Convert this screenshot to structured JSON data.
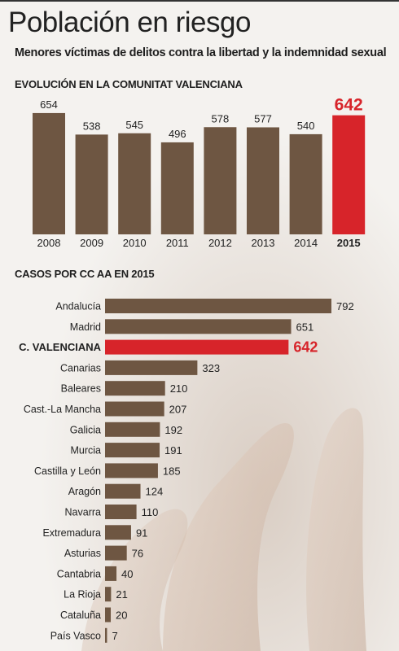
{
  "title": "Población en riesgo",
  "subtitle": "Menores víctimas de delitos contra la libertad y la indemnidad sexual",
  "colors": {
    "bar": "#6e5642",
    "highlight": "#d7242a",
    "text": "#222222"
  },
  "chart_data": [
    {
      "type": "bar",
      "title": "EVOLUCIÓN EN LA COMUNITAT VALENCIANA",
      "categories": [
        "2008",
        "2009",
        "2010",
        "2011",
        "2012",
        "2013",
        "2014",
        "2015"
      ],
      "values": [
        654,
        538,
        545,
        496,
        578,
        577,
        540,
        642
      ],
      "highlight": "2015",
      "ylim": [
        0,
        680
      ],
      "grid": false
    },
    {
      "type": "bar",
      "orientation": "horizontal",
      "title": "CASOS POR CC AA EN 2015",
      "categories": [
        "Andalucía",
        "Madrid",
        "C. VALENCIANA",
        "Canarias",
        "Baleares",
        "Cast.-La Mancha",
        "Galicia",
        "Murcia",
        "Castilla y León",
        "Aragón",
        "Navarra",
        "Extremadura",
        "Asturias",
        "Cantabria",
        "La Rioja",
        "Cataluña",
        "País Vasco"
      ],
      "values": [
        792,
        651,
        642,
        323,
        210,
        207,
        192,
        191,
        185,
        124,
        110,
        91,
        76,
        40,
        21,
        20,
        7
      ],
      "highlight": "C. VALENCIANA",
      "xlim": [
        0,
        792
      ],
      "grid": false
    }
  ]
}
